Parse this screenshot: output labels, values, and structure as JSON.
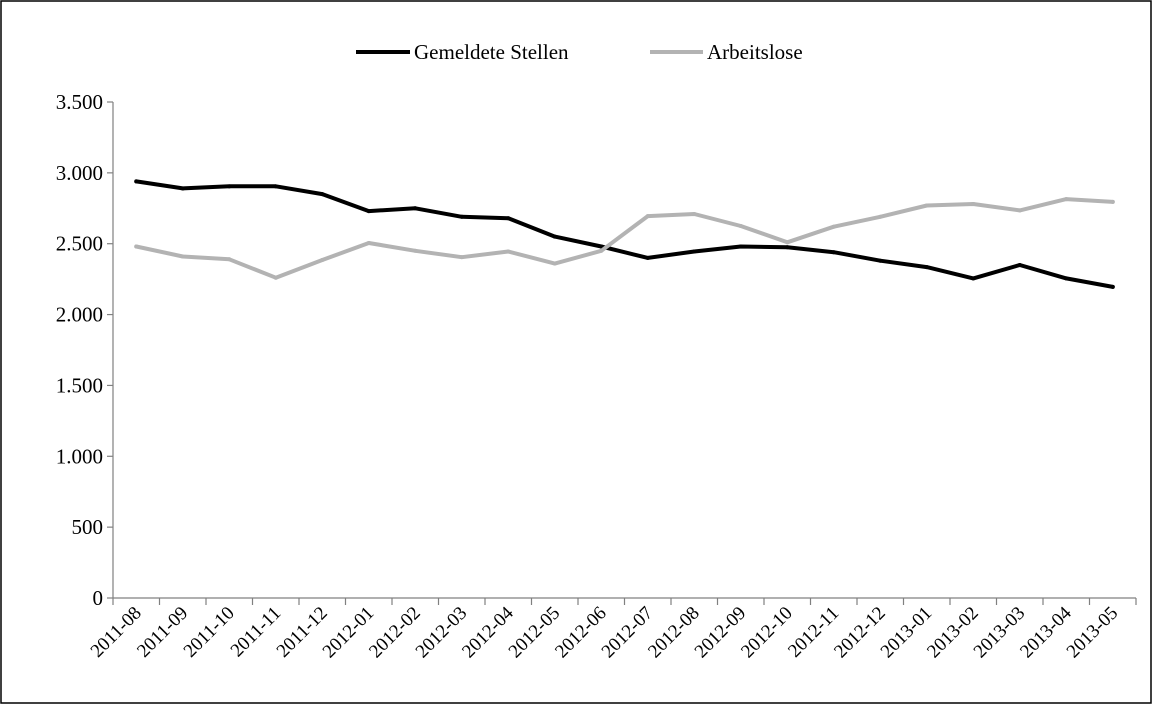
{
  "chart_data": {
    "type": "line",
    "title": "",
    "xlabel": "",
    "ylabel": "",
    "categories": [
      "2011-08",
      "2011-09",
      "2011-10",
      "2011-11",
      "2011-12",
      "2012-01",
      "2012-02",
      "2012-03",
      "2012-04",
      "2012-05",
      "2012-06",
      "2012-07",
      "2012-08",
      "2012-09",
      "2012-10",
      "2012-11",
      "2012-12",
      "2013-01",
      "2013-02",
      "2013-03",
      "2013-04",
      "2013-05"
    ],
    "ylim": [
      0,
      3500
    ],
    "yticks": [
      0,
      500,
      1000,
      1500,
      2000,
      2500,
      3000,
      3500
    ],
    "ytick_labels": [
      "0",
      "500",
      "1.000",
      "1.500",
      "2.000",
      "2.500",
      "3.000",
      "3.500"
    ],
    "grid": false,
    "legend_position": "top-center",
    "series": [
      {
        "name": "Gemeldete Stellen",
        "color": "#000000",
        "values": [
          2940,
          2890,
          2905,
          2905,
          2850,
          2730,
          2750,
          2690,
          2680,
          2550,
          2480,
          2400,
          2445,
          2480,
          2475,
          2440,
          2380,
          2335,
          2255,
          2350,
          2255,
          2195
        ]
      },
      {
        "name": "Arbeitslose",
        "color": "#b3b3b3",
        "values": [
          2480,
          2410,
          2390,
          2260,
          2385,
          2505,
          2450,
          2405,
          2445,
          2360,
          2450,
          2695,
          2710,
          2625,
          2510,
          2620,
          2690,
          2770,
          2780,
          2735,
          2815,
          2795
        ]
      }
    ]
  }
}
